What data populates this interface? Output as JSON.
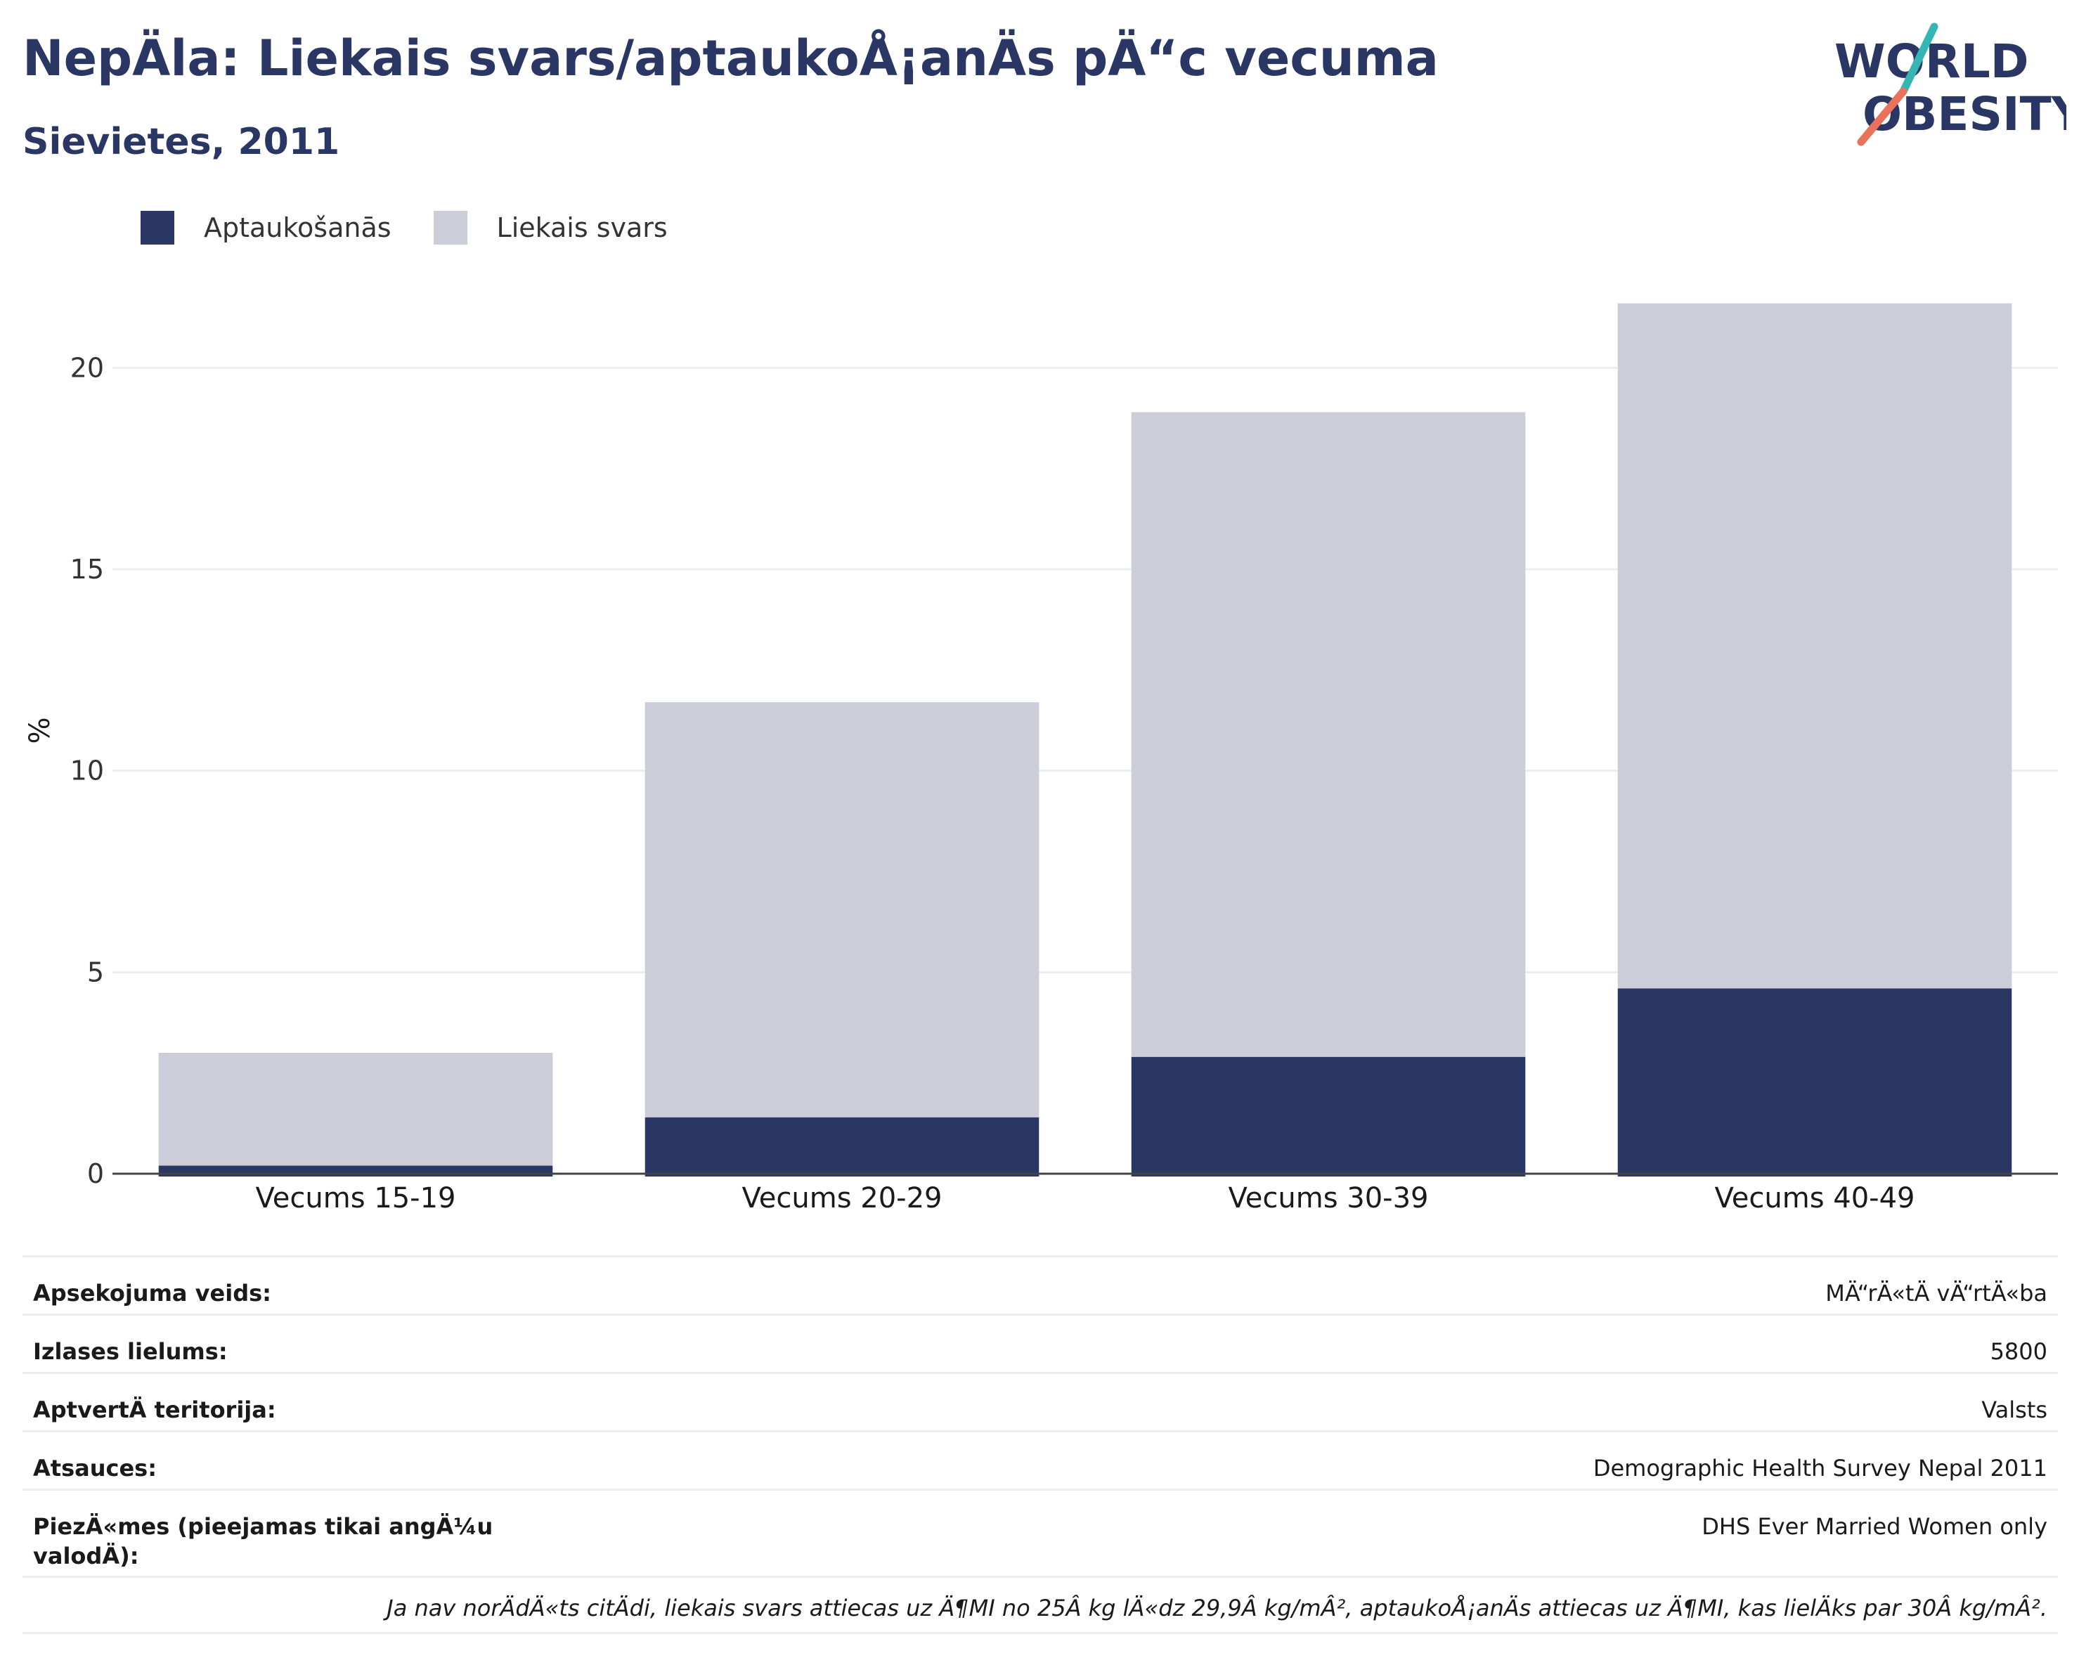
{
  "header": {
    "title": "NepÄla: Liekais svars/aptaukoÅ¡anÄs pÄ“c vecuma",
    "subtitle": "Sievietes, 2011",
    "logo_line1": "WORLD",
    "logo_line2": "OBESITY"
  },
  "colors": {
    "obesity": "#2a3663",
    "overweight": "#cbcdd8",
    "text": "#2a3663",
    "grid": "#ebedf3",
    "axis": "#444444",
    "logo_teal": "#35b6b4",
    "logo_coral": "#e8735a"
  },
  "chart_data": {
    "type": "bar",
    "stacked": true,
    "categories": [
      "Vecums 15-19",
      "Vecums 20-29",
      "Vecums 30-39",
      "Vecums 40-49"
    ],
    "series": [
      {
        "name": "Aptaukošanās",
        "values": [
          0.2,
          1.4,
          2.9,
          4.6
        ]
      },
      {
        "name": "Liekais svars",
        "values": [
          2.8,
          10.3,
          16.0,
          17.0
        ]
      }
    ],
    "ylabel": "%",
    "xlabel": "",
    "ylim": [
      0,
      22.5
    ],
    "yticks": [
      0,
      5,
      10,
      15,
      20
    ],
    "grid": true,
    "legend_position": "top-left"
  },
  "info": {
    "rows": [
      {
        "label": "Apsekojuma veids:",
        "value": "MÄ“rÄ«tÄ vÄ“rtÄ«ba"
      },
      {
        "label": "Izlases lielums:",
        "value": "5800"
      },
      {
        "label": "AptvertÄ teritorija:",
        "value": "Valsts"
      },
      {
        "label": "Atsauces:",
        "value": "Demographic Health Survey Nepal 2011"
      },
      {
        "label": "PiezÄ«mes (pieejamas tikai angÄ¼u valodÄ):",
        "value": "DHS Ever Married Women only"
      }
    ],
    "note": "Ja nav norÄdÄ«ts citÄdi, liekais svars attiecas uz Ä¶MI no 25Â kg lÄ«dz 29,9Â kg/mÂ², aptaukoÅ¡anÄs attiecas uz Ä¶MI, kas lielÄks par 30Â kg/mÂ²."
  }
}
